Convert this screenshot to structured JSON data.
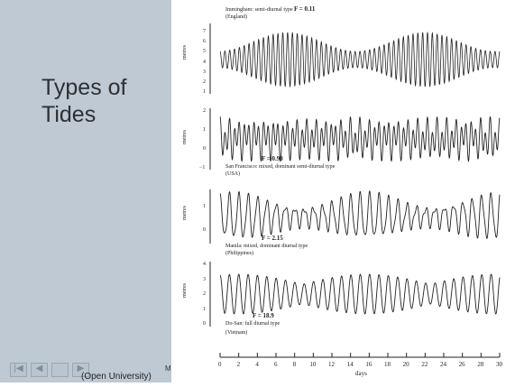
{
  "slide": {
    "title_line1": "Types of",
    "title_line2": "Tides"
  },
  "nav": {
    "first_icon": "skip-back-icon",
    "prev_icon": "play-back-icon",
    "blank_button": "",
    "next_icon": "play-forward-icon"
  },
  "caption": {
    "text": "(Open University)",
    "tail": "M"
  },
  "figure": {
    "y_unit": "metres",
    "x_label": "days",
    "x_ticks": [
      "0",
      "2",
      "4",
      "6",
      "8",
      "10",
      "12",
      "14",
      "16",
      "18",
      "20",
      "22",
      "24",
      "26",
      "28",
      "30"
    ],
    "panels": [
      {
        "title": "Immingham: semi-diurnal type",
        "subtitle": "(England)",
        "f_label": "F = 0.11",
        "y_ticks": [
          "7",
          "6",
          "5",
          "4",
          "3",
          "2",
          "1"
        ]
      },
      {
        "title": "San Francisco: mixed, dominant semi-diurnal type",
        "subtitle": "(USA)",
        "f_label": "F = 0.90",
        "y_ticks": [
          "2",
          "1",
          "0",
          "−1"
        ]
      },
      {
        "title": "Manila: mixed, dominant diurnal type",
        "subtitle": "(Philippines)",
        "f_label": "F = 2.15",
        "y_ticks": [
          "1",
          "0"
        ]
      },
      {
        "title": "Do-San: full diurnal type",
        "subtitle": "(Vietnam)",
        "f_label": "F = 18.9",
        "y_ticks": [
          "4",
          "3",
          "2",
          "1",
          "0"
        ]
      }
    ]
  },
  "colors": {
    "panel_bg": "#bfc9d3",
    "ink": "#222222"
  }
}
